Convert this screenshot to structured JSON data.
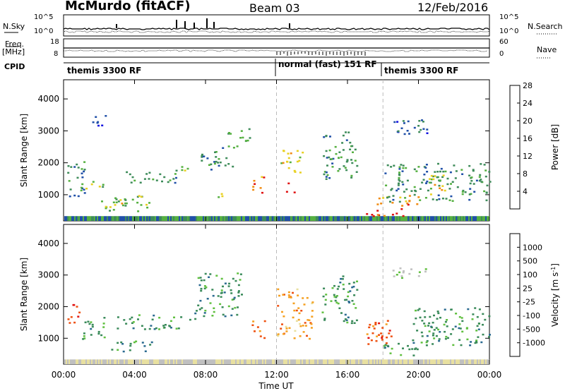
{
  "header": {
    "station": "McMurdo (fitACF)",
    "beam": "Beam 03",
    "date": "12/Feb/2016"
  },
  "top_panels": {
    "nsky_label": "N.Sky",
    "nsearch_label": "N.Search",
    "freq_label_1": "Freq.",
    "freq_label_2": "[MHz]",
    "nave_label": "Nave",
    "cpid_label": "CPID",
    "left_ticks_counts": [
      "10^5",
      "10^0"
    ],
    "right_ticks_counts": [
      "10^5",
      "10^0"
    ],
    "left_ticks_freq": [
      "18",
      "8"
    ],
    "right_ticks_nave": [
      "60",
      "0"
    ]
  },
  "cpid_segments": [
    {
      "label": "themis 3300 RF",
      "start_hour": 0,
      "end_hour": 12
    },
    {
      "label": "normal (fast) 151 RF",
      "start_hour": 12,
      "end_hour": 18
    },
    {
      "label": "themis 3300 RF",
      "start_hour": 18,
      "end_hour": 24
    }
  ],
  "x_axis": {
    "label": "Time UT",
    "ticks": [
      "00:00",
      "04:00",
      "08:00",
      "12:00",
      "16:00",
      "20:00",
      "00:00"
    ]
  },
  "chart_data": [
    {
      "type": "heatmap",
      "name": "power",
      "ylabel": "Slant Range [km]",
      "ylim": [
        180,
        4600
      ],
      "yticks": [
        "1000",
        "2000",
        "3000",
        "4000"
      ],
      "xlim": [
        0,
        24
      ],
      "colorbar": {
        "label": "Power [dB]",
        "ticks": [
          "4",
          "8",
          "12",
          "16",
          "20",
          "24",
          "28"
        ],
        "colors": [
          "#1010e0",
          "#2050a8",
          "#3e8c5a",
          "#55b040",
          "#e8d020",
          "#f08a10",
          "#e01010"
        ]
      },
      "regions": [
        {
          "x0": 0.2,
          "x1": 1.2,
          "y0": 900,
          "y1": 2100,
          "level": 2
        },
        {
          "x0": 0.8,
          "x1": 2.2,
          "y0": 1200,
          "y1": 1500,
          "level": 3
        },
        {
          "x0": 2.0,
          "x1": 5.0,
          "y0": 500,
          "y1": 1000,
          "level": 3
        },
        {
          "x0": 2.8,
          "x1": 4.0,
          "y0": 700,
          "y1": 950,
          "level": 4
        },
        {
          "x0": 3.5,
          "x1": 6.5,
          "y0": 1400,
          "y1": 1800,
          "level": 2
        },
        {
          "x0": 1.5,
          "x1": 2.5,
          "y0": 3100,
          "y1": 3500,
          "level": 1
        },
        {
          "x0": 6.5,
          "x1": 7.3,
          "y0": 1600,
          "y1": 1900,
          "level": 3
        },
        {
          "x0": 7.5,
          "x1": 9.5,
          "y0": 1800,
          "y1": 2500,
          "level": 2
        },
        {
          "x0": 8.5,
          "x1": 9.3,
          "y0": 950,
          "y1": 1150,
          "level": 4
        },
        {
          "x0": 9.2,
          "x1": 10.5,
          "y0": 2500,
          "y1": 3100,
          "level": 3
        },
        {
          "x0": 10.6,
          "x1": 11.3,
          "y0": 1000,
          "y1": 1600,
          "level": 5
        },
        {
          "x0": 12.2,
          "x1": 13.5,
          "y0": 1700,
          "y1": 2500,
          "level": 4
        },
        {
          "x0": 12.4,
          "x1": 13.0,
          "y0": 1100,
          "y1": 1400,
          "level": 6
        },
        {
          "x0": 14.5,
          "x1": 16.5,
          "y0": 1500,
          "y1": 3000,
          "level": 2
        },
        {
          "x0": 17.0,
          "x1": 19.5,
          "y0": 350,
          "y1": 600,
          "level": 6
        },
        {
          "x0": 17.5,
          "x1": 20.0,
          "y0": 650,
          "y1": 1000,
          "level": 5
        },
        {
          "x0": 18.0,
          "x1": 24.0,
          "y0": 800,
          "y1": 2000,
          "level": 2
        },
        {
          "x0": 20.5,
          "x1": 21.5,
          "y0": 1000,
          "y1": 1700,
          "level": 4
        },
        {
          "x0": 18.5,
          "x1": 20.5,
          "y0": 2900,
          "y1": 3500,
          "level": 1
        }
      ]
    },
    {
      "type": "heatmap",
      "name": "velocity",
      "ylabel": "Slant Range [km]",
      "ylim": [
        180,
        4600
      ],
      "yticks": [
        "1000",
        "2000",
        "3000",
        "4000"
      ],
      "xlim": [
        0,
        24
      ],
      "colorbar": {
        "label": "Velocity [m s",
        "label_sup": "-1",
        "label_end": "]",
        "ticks": [
          "-1000",
          "-500",
          "-100",
          "-25",
          "25",
          "100",
          "500",
          "1000"
        ],
        "colors": [
          "#e01010",
          "#ee5010",
          "#f5a020",
          "#e8e0a0",
          "#c0c0c0",
          "#60c040",
          "#3a8a5a",
          "#2a6a90",
          "#1530b0"
        ]
      },
      "regions": [
        {
          "x0": 0.2,
          "x1": 1.0,
          "y0": 1500,
          "y1": 2100,
          "level": 1
        },
        {
          "x0": 1.0,
          "x1": 2.5,
          "y0": 1000,
          "y1": 1700,
          "level": 6
        },
        {
          "x0": 2.5,
          "x1": 5.0,
          "y0": 600,
          "y1": 950,
          "level": 6
        },
        {
          "x0": 3.0,
          "x1": 6.5,
          "y0": 1300,
          "y1": 1800,
          "level": 6
        },
        {
          "x0": 6.5,
          "x1": 7.5,
          "y0": 1600,
          "y1": 1900,
          "level": 6
        },
        {
          "x0": 7.5,
          "x1": 10.0,
          "y0": 1700,
          "y1": 3100,
          "level": 6
        },
        {
          "x0": 10.6,
          "x1": 11.3,
          "y0": 1000,
          "y1": 1600,
          "level": 1
        },
        {
          "x0": 12.0,
          "x1": 14.0,
          "y0": 1000,
          "y1": 2600,
          "level": 2
        },
        {
          "x0": 14.5,
          "x1": 16.5,
          "y0": 1500,
          "y1": 3000,
          "level": 6
        },
        {
          "x0": 17.0,
          "x1": 18.5,
          "y0": 800,
          "y1": 1800,
          "level": 1
        },
        {
          "x0": 18.0,
          "x1": 20.0,
          "y0": 400,
          "y1": 900,
          "level": 6
        },
        {
          "x0": 19.5,
          "x1": 24.0,
          "y0": 800,
          "y1": 2000,
          "level": 6
        },
        {
          "x0": 18.5,
          "x1": 20.5,
          "y0": 2900,
          "y1": 3300,
          "level": 4
        }
      ]
    }
  ]
}
